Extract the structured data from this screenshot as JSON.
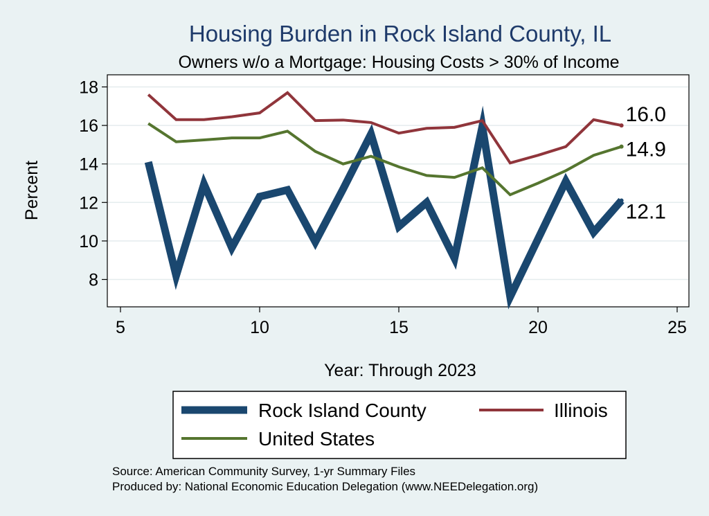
{
  "chart_data": {
    "type": "line",
    "title": "Housing Burden in Rock Island County, IL",
    "subtitle": "Owners w/o a Mortgage: Housing Costs > 30% of Income",
    "xlabel": "Year: Through 2023",
    "ylabel": "Percent",
    "xlim": [
      5,
      25
    ],
    "ylim": [
      7,
      18.5
    ],
    "xticks": [
      5,
      10,
      15,
      20,
      25
    ],
    "yticks": [
      8,
      10,
      12,
      14,
      16,
      18
    ],
    "grid": true,
    "legend_placement": "bottom",
    "x": [
      6,
      7,
      8,
      9,
      10,
      11,
      12,
      13,
      14,
      15,
      16,
      17,
      18,
      19,
      20,
      21,
      22,
      23
    ],
    "series": [
      {
        "name": "Rock Island County",
        "color": "#1a476f",
        "values": [
          14.1,
          8.2,
          12.95,
          9.65,
          12.3,
          12.65,
          9.95,
          12.7,
          15.55,
          10.75,
          12.0,
          9.1,
          15.95,
          7.1,
          10.1,
          13.1,
          10.45,
          12.1
        ],
        "end_label": "12.1"
      },
      {
        "name": "Illinois",
        "color": "#90353b",
        "values": [
          17.6,
          16.3,
          16.3,
          16.45,
          16.65,
          17.7,
          16.25,
          16.28,
          16.15,
          15.6,
          15.85,
          15.9,
          16.25,
          14.05,
          14.45,
          14.9,
          16.3,
          16.0
        ],
        "end_label": "16.0"
      },
      {
        "name": "United States",
        "color": "#55752f",
        "values": [
          16.1,
          15.15,
          15.25,
          15.35,
          15.35,
          15.7,
          14.65,
          14.0,
          14.4,
          13.85,
          13.4,
          13.3,
          13.8,
          12.4,
          13.0,
          13.65,
          14.45,
          14.9
        ],
        "end_label": "14.9"
      }
    ]
  },
  "source": {
    "line1": "Source: American Community Survey, 1-yr Summary Files",
    "line2": "Produced by: National Economic Education Delegation (www.NEEDelegation.org)"
  }
}
